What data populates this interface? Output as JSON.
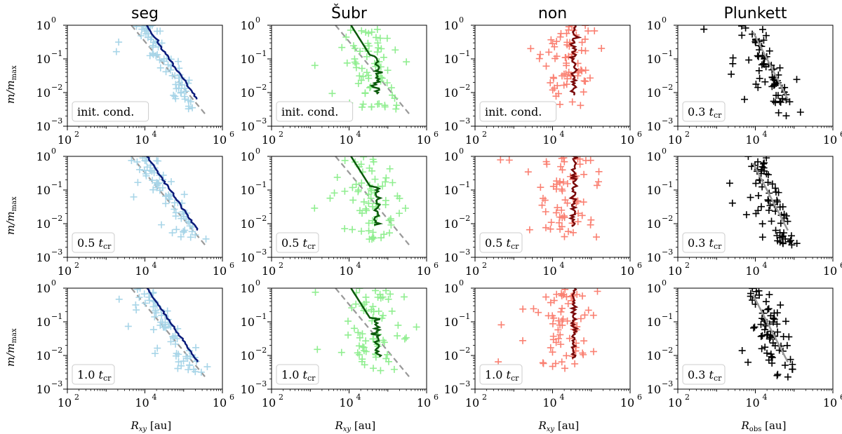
{
  "chart_data": {
    "type": "scatter",
    "description_grid": "3x4 grid of log-log scatter panels",
    "columns": [
      {
        "title": "seg",
        "point_color": "#a8d5e8",
        "line_color": "#0a1a7a",
        "shape": "seg",
        "xlabel_main": "R",
        "xlabel_sub": "xy",
        "xlabel_unit": "[au]"
      },
      {
        "title": "Šubr",
        "point_color": "#90ee90",
        "line_color": "#0b5a0b",
        "shape": "subr",
        "xlabel_main": "R",
        "xlabel_sub": "xy",
        "xlabel_unit": "[au]"
      },
      {
        "title": "non",
        "point_color": "#fa8072",
        "line_color": "#7a0a0a",
        "shape": "non",
        "xlabel_main": "R",
        "xlabel_sub": "xy",
        "xlabel_unit": "[au]"
      },
      {
        "title": "Plunkett",
        "point_color": "#000000",
        "line_color": "#999999",
        "shape": "plunkett",
        "xlabel_main": "R",
        "xlabel_sub": "obs",
        "xlabel_unit": "[au]"
      }
    ],
    "rows": [
      {
        "labels": [
          "init. cond.",
          "init. cond.",
          "init. cond.",
          "0.3 t_cr"
        ]
      },
      {
        "labels": [
          "0.5 t_cr",
          "0.5 t_cr",
          "0.5 t_cr",
          "0.3 t_cr"
        ]
      },
      {
        "labels": [
          "1.0 t_cr",
          "1.0 t_cr",
          "1.0 t_cr",
          "0.3 t_cr"
        ]
      }
    ],
    "panel_labels": [
      [
        {
          "num": "init. cond.",
          "t": false
        },
        {
          "num": "init. cond.",
          "t": false
        },
        {
          "num": "init. cond.",
          "t": false
        },
        {
          "num": "0.3",
          "t": true
        }
      ],
      [
        {
          "num": "0.5",
          "t": true
        },
        {
          "num": "0.5",
          "t": true
        },
        {
          "num": "0.5",
          "t": true
        },
        {
          "num": "0.3",
          "t": true
        }
      ],
      [
        {
          "num": "1.0",
          "t": true
        },
        {
          "num": "1.0",
          "t": true
        },
        {
          "num": "1.0",
          "t": true
        },
        {
          "num": "0.3",
          "t": true
        }
      ]
    ],
    "t_symbol": "t",
    "t_sub": "cr",
    "ylabel": "m/m",
    "ylabel_sub": "max",
    "x_log_range": [
      2,
      6
    ],
    "y_log_range": [
      -3,
      0
    ],
    "xticks": [
      {
        "base": "10",
        "exp": "2",
        "log": 2
      },
      {
        "base": "10",
        "exp": "4",
        "log": 4
      },
      {
        "base": "10",
        "exp": "6",
        "log": 6
      }
    ],
    "yticks": [
      {
        "base": "10",
        "exp": "0",
        "log": 0
      },
      {
        "base": "10",
        "exp": "−1",
        "log": -1
      },
      {
        "base": "10",
        "exp": "−2",
        "log": -2
      },
      {
        "base": "10",
        "exp": "−3",
        "log": -3
      }
    ],
    "reference_line": {
      "style": "dashed",
      "color": "#999999",
      "note": "power-law mass-radius relation"
    }
  }
}
